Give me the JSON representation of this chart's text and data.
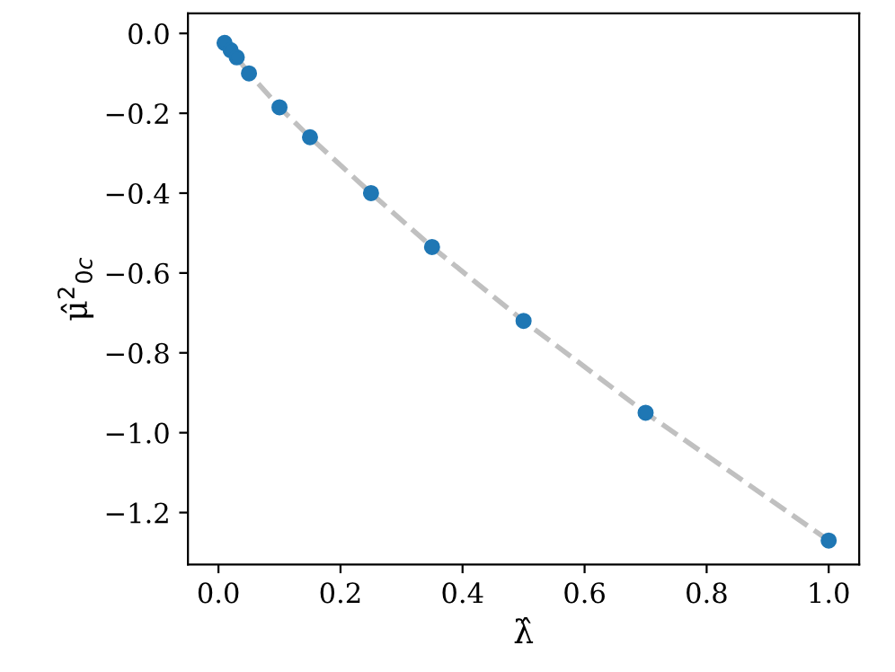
{
  "chart_data": {
    "type": "scatter",
    "xlabel": "λ̂",
    "ylabel": "μ̂$^{2}$$_{0c}$",
    "x": [
      0.01,
      0.02,
      0.03,
      0.05,
      0.1,
      0.15,
      0.25,
      0.35,
      0.5,
      0.7,
      1.0
    ],
    "series": [
      {
        "type": "line",
        "color": "#c0c0c0",
        "line_style": "dashed",
        "marker": "none",
        "values": [
          -0.024,
          -0.042,
          -0.06,
          -0.1,
          -0.185,
          -0.26,
          -0.4,
          -0.535,
          -0.72,
          -0.95,
          -1.27
        ]
      },
      {
        "color": "#1f77b4",
        "marker": "circle",
        "values": [
          -0.024,
          -0.042,
          -0.06,
          -0.1,
          -0.185,
          -0.26,
          -0.4,
          -0.535,
          -0.72,
          -0.95,
          -1.27
        ]
      }
    ],
    "xlim": [
      -0.05,
      1.05
    ],
    "ylim": [
      -1.33,
      0.05
    ],
    "xticks": [
      {
        "value": 0,
        "label": "0.0"
      },
      0.2,
      0.4,
      0.6,
      0.8,
      {
        "value": 1,
        "label": "1.0"
      }
    ],
    "yticks": [
      {
        "value": 0,
        "label": "0.0"
      },
      -0.2,
      -0.4,
      -0.6,
      -0.8,
      {
        "value": -1,
        "label": "−1.0"
      },
      -1.2
    ],
    "grid": false,
    "legend": false
  }
}
